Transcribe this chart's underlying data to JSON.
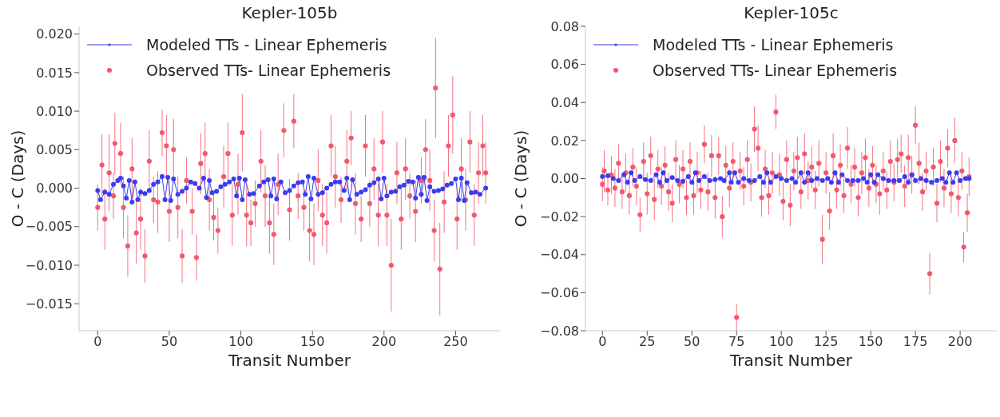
{
  "chart_data": [
    {
      "type": "line",
      "title": "Kepler-105b",
      "xlabel": "Transit Number",
      "ylabel": "O - C (Days)",
      "legend": "top left",
      "xlim": [
        -13,
        281
      ],
      "xticks": [
        0,
        50,
        100,
        150,
        200,
        250
      ],
      "ylim": [
        -0.0185,
        0.021
      ],
      "yticks": [
        {
          "value": -0.015,
          "label": "−0.015"
        },
        {
          "value": -0.01,
          "label": "−0.010"
        },
        {
          "value": -0.005,
          "label": "−0.005"
        },
        {
          "value": 0,
          "label": "0.000"
        },
        {
          "value": 0.005,
          "label": "0.005"
        },
        {
          "value": 0.01,
          "label": "0.010"
        },
        {
          "value": 0.015,
          "label": "0.015"
        },
        {
          "value": 0.02,
          "label": "0.020"
        }
      ],
      "series": [
        {
          "name": "Modeled TTs - Linear Ephemeris",
          "type": "line",
          "color": "#3b3bf0",
          "marker": "circle",
          "x": [
            0,
            2,
            5,
            8,
            11,
            14,
            16,
            18,
            20,
            22,
            24,
            26,
            28,
            30,
            33,
            36,
            39,
            42,
            45,
            47,
            49,
            51,
            53,
            56,
            59,
            62,
            65,
            68,
            71,
            74,
            76,
            78,
            80,
            83,
            86,
            89,
            92,
            95,
            97,
            99,
            101,
            103,
            106,
            109,
            113,
            116,
            119,
            121,
            123,
            125,
            128,
            131,
            134,
            137,
            140,
            143,
            145,
            147,
            149,
            151,
            154,
            157,
            160,
            163,
            166,
            169,
            172,
            174,
            176,
            178,
            181,
            184,
            187,
            190,
            193,
            196,
            198,
            200,
            202,
            205,
            208,
            211,
            214,
            217,
            220,
            222,
            224,
            226,
            228,
            230,
            232,
            235,
            238,
            241,
            244,
            247,
            250,
            252,
            254,
            256,
            258,
            261,
            264,
            267,
            271
          ],
          "values": [
            -0.0003,
            -0.0015,
            -0.0005,
            -0.0008,
            0.0005,
            0.001,
            0.0013,
            0.0003,
            -0.0013,
            0.001,
            -0.0018,
            0.0008,
            -0.0015,
            -0.0005,
            -0.0007,
            -0.0003,
            0.0005,
            0.0008,
            0.0015,
            -0.0015,
            0.0014,
            -0.0016,
            0.0012,
            -0.0008,
            -0.0004,
            0,
            0.0008,
            0.0006,
            0,
            0.0013,
            -0.0012,
            0.001,
            -0.0006,
            -0.0004,
            0.0002,
            0.0005,
            0.0008,
            0.0012,
            -0.001,
            0.0013,
            -0.0015,
            0.0011,
            -0.0008,
            -0.0007,
            0.0003,
            0.0008,
            0.0011,
            -0.001,
            0.0012,
            -0.0014,
            0.0008,
            -0.0006,
            -0.0003,
            0.0003,
            0.0007,
            0.0008,
            -0.0008,
            0.0015,
            -0.0014,
            0.0013,
            -0.0008,
            -0.0006,
            0,
            0.0005,
            0.0008,
            0.0008,
            -0.0003,
            0.0013,
            -0.0015,
            0.0011,
            -0.0008,
            -0.0005,
            -0.0002,
            0.0004,
            0.0007,
            0.0012,
            -0.0014,
            0.0013,
            -0.001,
            -0.0005,
            -0.0004,
            0.0002,
            0.0004,
            0.0009,
            0.0008,
            -0.0013,
            0.0014,
            -0.0008,
            0.0014,
            -0.0016,
            0.0002,
            -0.0004,
            -0.0003,
            -0.0001,
            0.0004,
            0.0006,
            0.0012,
            -0.0015,
            0.0013,
            -0.0016,
            0.0007,
            -0.0006,
            -0.0005,
            -0.0008,
            0
          ]
        },
        {
          "name": "Observed TTs- Linear Ephemeris",
          "type": "scatter",
          "color": "#f2596c",
          "marker": "circle",
          "x": [
            0,
            3,
            5,
            8,
            11,
            12,
            16,
            18,
            21,
            24,
            27,
            30,
            33,
            36,
            39,
            42,
            45,
            48,
            50,
            53,
            56,
            59,
            62,
            66,
            69,
            72,
            75,
            78,
            81,
            84,
            88,
            91,
            94,
            98,
            101,
            104,
            107,
            110,
            114,
            117,
            120,
            123,
            126,
            130,
            134,
            137,
            140,
            144,
            148,
            151,
            154,
            157,
            160,
            163,
            166,
            170,
            174,
            177,
            180,
            184,
            187,
            190,
            193,
            196,
            199,
            202,
            205,
            209,
            212,
            215,
            218,
            222,
            226,
            229,
            232,
            235,
            236,
            239,
            242,
            245,
            248,
            251,
            254,
            257,
            260,
            263,
            266,
            269,
            271
          ],
          "values": [
            -0.0025,
            0.003,
            -0.004,
            0.002,
            -0.001,
            0.0058,
            0.0045,
            -0.0025,
            -0.0075,
            0.0025,
            -0.0058,
            -0.004,
            -0.0088,
            0.0035,
            -0.0015,
            -0.0018,
            0.0072,
            0.0055,
            -0.003,
            0.005,
            -0.0025,
            -0.0088,
            0.001,
            -0.003,
            -0.009,
            0.0032,
            0.0045,
            -0.0015,
            -0.0038,
            -0.0055,
            0.0015,
            0.0045,
            -0.0035,
            0.0005,
            0.0072,
            -0.0035,
            -0.0045,
            -0.002,
            0.0035,
            -0.001,
            -0.0045,
            -0.006,
            0.0005,
            0.0075,
            -0.0028,
            0.0087,
            -0.001,
            -0.0025,
            -0.0055,
            -0.006,
            0.001,
            -0.0035,
            -0.0045,
            0.0055,
            0.0015,
            -0.0015,
            0.0035,
            0.0065,
            -0.002,
            -0.004,
            0.0055,
            -0.002,
            0.0025,
            -0.0035,
            0.006,
            -0.0035,
            -0.01,
            0.002,
            -0.004,
            0.0025,
            -0.001,
            -0.003,
            0.001,
            0.005,
            0.001,
            -0.0055,
            0.013,
            -0.0105,
            -0.0018,
            0.0055,
            0.0095,
            -0.004,
            0.0025,
            -0.0015,
            0.006,
            -0.0035,
            0.002,
            0.0055,
            0.002
          ],
          "errors": [
            0.003,
            0.004,
            0.004,
            0.005,
            0.003,
            0.004,
            0.004,
            0.004,
            0.004,
            0.004,
            0.004,
            0.004,
            0.0035,
            0.004,
            0.003,
            0.004,
            0.003,
            0.004,
            0.004,
            0.004,
            0.004,
            0.0035,
            0.003,
            0.003,
            0.003,
            0.004,
            0.004,
            0.004,
            0.003,
            0.003,
            0.004,
            0.004,
            0.004,
            0.004,
            0.005,
            0.004,
            0.003,
            0.003,
            0.004,
            0.004,
            0.004,
            0.004,
            0.004,
            0.0035,
            0.004,
            0.0035,
            0.003,
            0.003,
            0.004,
            0.004,
            0.004,
            0.004,
            0.004,
            0.004,
            0.004,
            0.003,
            0.004,
            0.0035,
            0.004,
            0.003,
            0.004,
            0.003,
            0.004,
            0.004,
            0.004,
            0.004,
            0.006,
            0.004,
            0.004,
            0.004,
            0.003,
            0.004,
            0.003,
            0.004,
            0.004,
            0.004,
            0.0065,
            0.006,
            0.004,
            0.004,
            0.005,
            0.004,
            0.004,
            0.004,
            0.004,
            0.004,
            0.004,
            0.004,
            0.004
          ]
        }
      ]
    },
    {
      "type": "line",
      "title": "Kepler-105c",
      "xlabel": "Transit Number",
      "ylabel": "O - C (Days)",
      "legend": "top left",
      "xlim": [
        -9.5,
        220.5
      ],
      "xticks": [
        0,
        25,
        50,
        75,
        100,
        125,
        150,
        175,
        200
      ],
      "ylim": [
        -0.08,
        0.08
      ],
      "yticks": [
        {
          "value": -0.08,
          "label": "−0.08"
        },
        {
          "value": -0.06,
          "label": "−0.06"
        },
        {
          "value": -0.04,
          "label": "−0.04"
        },
        {
          "value": -0.02,
          "label": "−0.02"
        },
        {
          "value": 0,
          "label": "0.00"
        },
        {
          "value": 0.02,
          "label": "0.02"
        },
        {
          "value": 0.04,
          "label": "0.04"
        },
        {
          "value": 0.06,
          "label": "0.06"
        },
        {
          "value": 0.08,
          "label": "0.08"
        }
      ],
      "series": [
        {
          "name": "Modeled TTs - Linear Ephemeris",
          "type": "line",
          "color": "#3b3bf0",
          "marker": "circle",
          "x": [
            0,
            3,
            6,
            9,
            12,
            14,
            16,
            18,
            21,
            24,
            27,
            30,
            32,
            34,
            36,
            39,
            42,
            45,
            48,
            50,
            52,
            54,
            57,
            60,
            63,
            66,
            68,
            71,
            72,
            74,
            76,
            79,
            82,
            85,
            88,
            90,
            92,
            94,
            97,
            100,
            103,
            106,
            108,
            111,
            113,
            115,
            117,
            120,
            123,
            126,
            128,
            130,
            132,
            134,
            137,
            140,
            143,
            146,
            148,
            150,
            152,
            154,
            157,
            160,
            163,
            166,
            169,
            171,
            173,
            175,
            178,
            181,
            184,
            187,
            190,
            192,
            194,
            196,
            198,
            200,
            203,
            205
          ],
          "values": [
            0.001,
            0.0015,
            0,
            -0.001,
            0.002,
            -0.002,
            0.003,
            -0.001,
            0.001,
            -0.0005,
            -0.001,
            0.002,
            -0.002,
            0.003,
            -0.001,
            0.0005,
            -0.001,
            -0.0015,
            0.001,
            -0.002,
            0.003,
            -0.001,
            0.001,
            -0.001,
            -0.0005,
            0,
            -0.001,
            0.003,
            -0.002,
            0.003,
            -0.002,
            0,
            -0.001,
            -0.001,
            0.001,
            -0.002,
            0.003,
            -0.002,
            0.001,
            0,
            -0.001,
            0,
            -0.002,
            0.003,
            -0.002,
            0.003,
            -0.001,
            0,
            -0.001,
            0,
            -0.002,
            0.003,
            -0.002,
            0.002,
            -0.001,
            -0.001,
            -0.001,
            0,
            -0.002,
            0.002,
            -0.002,
            0.002,
            0,
            -0.001,
            -0.001,
            -0.001,
            0.001,
            -0.002,
            0.002,
            -0.001,
            0,
            -0.001,
            -0.002,
            -0.001,
            0,
            -0.002,
            0.003,
            -0.002,
            0.003,
            -0.001,
            0,
            0
          ]
        },
        {
          "name": "Observed TTs- Linear Ephemeris",
          "type": "scatter",
          "color": "#f2596c",
          "marker": "circle",
          "x": [
            0,
            1,
            3,
            5,
            7,
            9,
            11,
            13,
            15,
            17,
            19,
            21,
            23,
            25,
            27,
            29,
            31,
            33,
            35,
            37,
            39,
            41,
            43,
            45,
            47,
            49,
            51,
            53,
            55,
            57,
            59,
            61,
            63,
            65,
            67,
            69,
            71,
            73,
            75,
            77,
            79,
            81,
            83,
            85,
            87,
            89,
            91,
            93,
            95,
            97,
            99,
            101,
            103,
            105,
            107,
            109,
            111,
            113,
            115,
            117,
            119,
            121,
            123,
            125,
            127,
            129,
            131,
            133,
            135,
            137,
            139,
            141,
            143,
            145,
            147,
            149,
            151,
            153,
            155,
            157,
            159,
            161,
            163,
            165,
            167,
            169,
            171,
            173,
            175,
            177,
            179,
            181,
            183,
            185,
            187,
            189,
            191,
            193,
            195,
            197,
            199,
            201,
            202,
            204,
            205
          ],
          "values": [
            -0.003,
            0.004,
            -0.006,
            0.002,
            -0.005,
            0.008,
            -0.007,
            0.003,
            -0.009,
            0.006,
            -0.004,
            -0.019,
            0.009,
            -0.008,
            0.012,
            -0.011,
            0.005,
            -0.004,
            0.007,
            -0.007,
            -0.013,
            0.01,
            -0.003,
            0.005,
            -0.01,
            0.009,
            -0.009,
            0.003,
            -0.006,
            0.018,
            -0.007,
            0.012,
            -0.01,
            0.012,
            -0.02,
            0.007,
            -0.005,
            0.009,
            -0.073,
            0.004,
            -0.004,
            0.01,
            -0.002,
            0.026,
            0.016,
            -0.01,
            0.005,
            -0.009,
            0.003,
            0.035,
            0.002,
            -0.012,
            0.01,
            -0.014,
            0.004,
            0.011,
            -0.007,
            0.013,
            -0.001,
            0.006,
            -0.006,
            0.008,
            -0.032,
            0.003,
            -0.017,
            0.012,
            -0.006,
            0.007,
            -0.009,
            0.016,
            -0.003,
            0.006,
            -0.01,
            0.003,
            0.011,
            -0.005,
            0.007,
            -0.003,
            -0.008,
            0.004,
            -0.006,
            0.009,
            -0.002,
            0.01,
            0.013,
            -0.004,
            0.011,
            0.002,
            0.028,
            0.008,
            -0.007,
            0.004,
            -0.05,
            0.006,
            -0.013,
            0.009,
            -0.005,
            0.016,
            -0.008,
            0.02,
            -0.01,
            0.004,
            -0.036,
            -0.018,
            0.001
          ],
          "errors": [
            0.009,
            0.011,
            0.008,
            0.01,
            0.01,
            0.01,
            0.009,
            0.01,
            0.01,
            0.01,
            0.01,
            0.009,
            0.01,
            0.011,
            0.01,
            0.011,
            0.01,
            0.01,
            0.01,
            0.01,
            0.01,
            0.01,
            0.01,
            0.01,
            0.009,
            0.01,
            0.01,
            0.011,
            0.01,
            0.01,
            0.01,
            0.011,
            0.011,
            0.01,
            0.011,
            0.01,
            0.01,
            0.01,
            0.007,
            0.01,
            0.01,
            0.01,
            0.01,
            0.012,
            0.012,
            0.01,
            0.01,
            0.01,
            0.011,
            0.009,
            0.011,
            0.01,
            0.01,
            0.011,
            0.01,
            0.011,
            0.009,
            0.011,
            0.01,
            0.011,
            0.01,
            0.012,
            0.013,
            0.011,
            0.01,
            0.012,
            0.01,
            0.011,
            0.009,
            0.011,
            0.01,
            0.01,
            0.01,
            0.011,
            0.01,
            0.01,
            0.01,
            0.01,
            0.011,
            0.01,
            0.01,
            0.011,
            0.01,
            0.011,
            0.01,
            0.011,
            0.012,
            0.01,
            0.01,
            0.011,
            0.01,
            0.01,
            0.011,
            0.01,
            0.01,
            0.011,
            0.01,
            0.01,
            0.01,
            0.012,
            0.01,
            0.01,
            0.008,
            0.01,
            0.01
          ]
        }
      ]
    }
  ]
}
